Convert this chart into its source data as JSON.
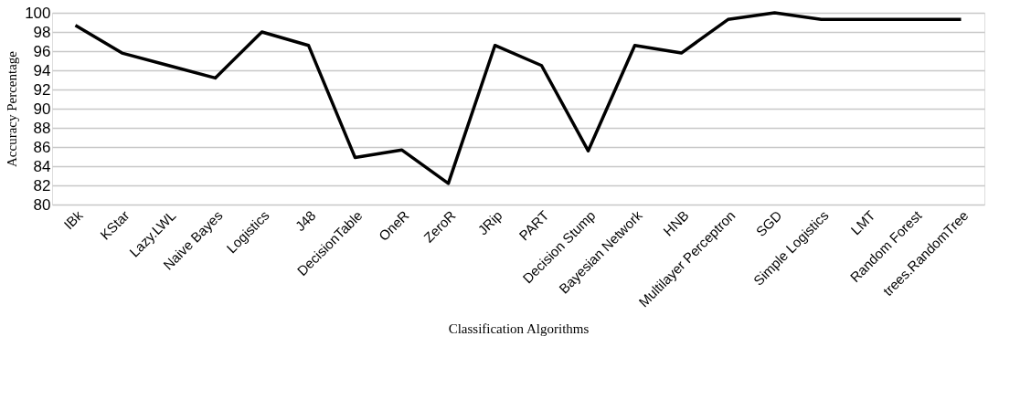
{
  "chart_data": {
    "type": "line",
    "xlabel": "Classification Algorithms",
    "ylabel": "Accuracy Percentage",
    "categories": [
      "IBk",
      "KStar",
      "Lazy.LWL",
      "Naive Bayes",
      "Logistics",
      "J48",
      "DecisionTable",
      "OneR",
      "ZeroR",
      "JRip",
      "PART",
      "Decision Stump",
      "Bayesian Network",
      "HNB",
      "Multilayer Perceptron",
      "SGD",
      "Simple Logistics",
      "LMT",
      "Random Forest",
      "trees.RandomTree"
    ],
    "series": [
      {
        "color": "#000000",
        "values": [
          98.7,
          95.8,
          94.5,
          93.2,
          98.0,
          96.6,
          84.9,
          85.7,
          82.2,
          96.6,
          94.5,
          85.6,
          96.6,
          95.8,
          99.3,
          100,
          99.3,
          99.3,
          99.3,
          99.3
        ]
      }
    ],
    "ylim": [
      80,
      100
    ],
    "yticks": [
      80,
      82,
      84,
      86,
      88,
      90,
      92,
      94,
      96,
      98,
      100
    ],
    "grid": "y",
    "legend": false,
    "marker": "none",
    "line_style": "solid"
  }
}
